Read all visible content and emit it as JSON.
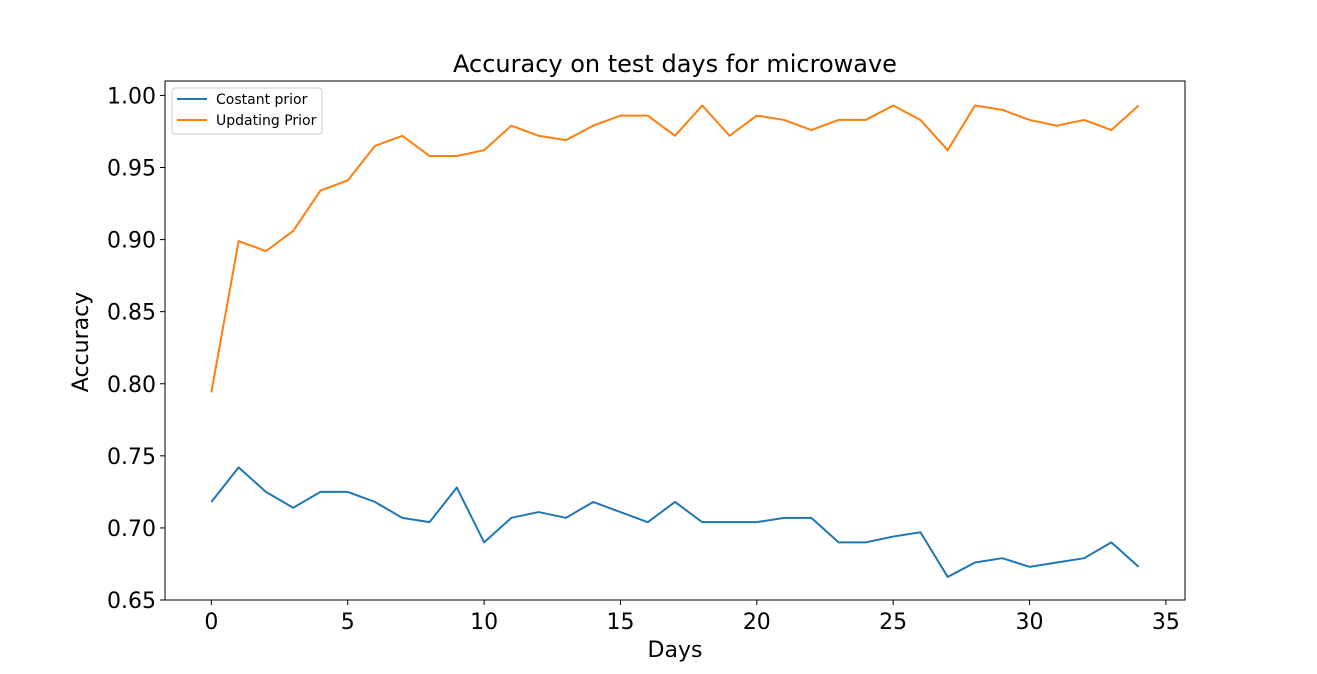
{
  "chart_data": {
    "type": "line",
    "title": "Accuracy on test days for microwave",
    "xlabel": "Days",
    "ylabel": "Accuracy",
    "xlim": [
      -1.7,
      35.7
    ],
    "ylim": [
      0.65,
      1.01
    ],
    "x_ticks": [
      0,
      5,
      10,
      15,
      20,
      25,
      30,
      35
    ],
    "x_tick_labels": [
      "0",
      "5",
      "10",
      "15",
      "20",
      "25",
      "30",
      "35"
    ],
    "y_ticks": [
      0.65,
      0.7,
      0.75,
      0.8,
      0.85,
      0.9,
      0.95,
      1.0
    ],
    "y_tick_labels": [
      "0.65",
      "0.70",
      "0.75",
      "0.80",
      "0.85",
      "0.90",
      "0.95",
      "1.00"
    ],
    "grid": false,
    "legend_position": "top-left",
    "x": [
      0,
      1,
      2,
      3,
      4,
      5,
      6,
      7,
      8,
      9,
      10,
      11,
      12,
      13,
      14,
      15,
      16,
      17,
      18,
      19,
      20,
      21,
      22,
      23,
      24,
      25,
      26,
      27,
      28,
      29,
      30,
      31,
      32,
      33,
      34
    ],
    "series": [
      {
        "name": "Costant prior",
        "color": "#1f77b4",
        "values": [
          0.718,
          0.742,
          0.725,
          0.714,
          0.725,
          0.725,
          0.718,
          0.707,
          0.704,
          0.728,
          0.69,
          0.707,
          0.711,
          0.707,
          0.718,
          0.711,
          0.704,
          0.718,
          0.704,
          0.704,
          0.704,
          0.707,
          0.707,
          0.69,
          0.69,
          0.694,
          0.697,
          0.666,
          0.676,
          0.679,
          0.673,
          0.676,
          0.679,
          0.69,
          0.673
        ]
      },
      {
        "name": "Updating Prior",
        "color": "#ff7f0e",
        "values": [
          0.794,
          0.899,
          0.892,
          0.906,
          0.934,
          0.941,
          0.965,
          0.972,
          0.958,
          0.958,
          0.962,
          0.979,
          0.972,
          0.969,
          0.979,
          0.986,
          0.986,
          0.972,
          0.993,
          0.972,
          0.986,
          0.983,
          0.976,
          0.983,
          0.983,
          0.993,
          0.983,
          0.962,
          0.993,
          0.99,
          0.983,
          0.979,
          0.983,
          0.976,
          0.993
        ]
      }
    ]
  }
}
